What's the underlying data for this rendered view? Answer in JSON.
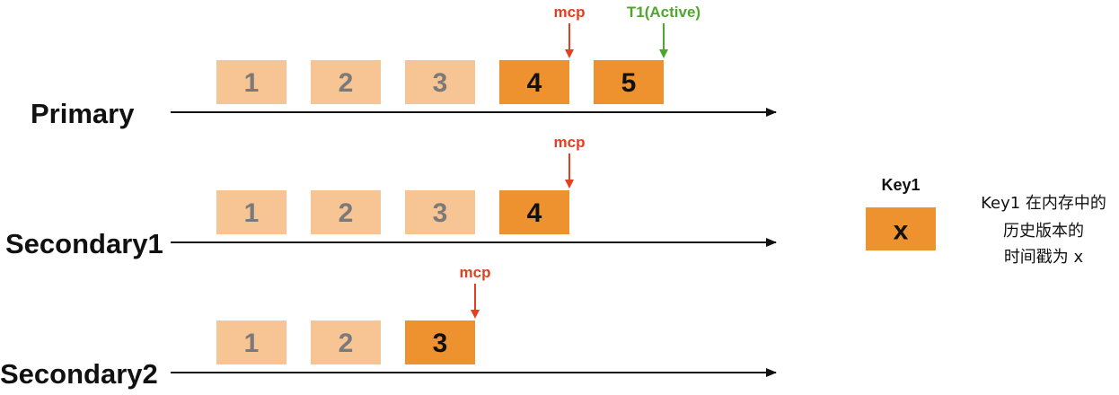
{
  "colors": {
    "old_box": "#f6c593",
    "old_text": "#7a7a7a",
    "current_box": "#ee922f",
    "current_text": "#111111",
    "mcp": "#e2401f",
    "active": "#4fa62e",
    "axis": "#111111"
  },
  "rows": [
    {
      "id": "primary",
      "label": "Primary",
      "boxes": [
        {
          "label": "1",
          "state": "old"
        },
        {
          "label": "2",
          "state": "old"
        },
        {
          "label": "3",
          "state": "old"
        },
        {
          "label": "4",
          "state": "current"
        },
        {
          "label": "5",
          "state": "current"
        }
      ],
      "markers": [
        {
          "label": "mcp",
          "kind": "mcp",
          "after_box": 4
        },
        {
          "label": "T1(Active)",
          "kind": "active",
          "after_box": 5
        }
      ]
    },
    {
      "id": "secondary1",
      "label": "Secondary1",
      "boxes": [
        {
          "label": "1",
          "state": "old"
        },
        {
          "label": "2",
          "state": "old"
        },
        {
          "label": "3",
          "state": "old"
        },
        {
          "label": "4",
          "state": "current"
        }
      ],
      "markers": [
        {
          "label": "mcp",
          "kind": "mcp",
          "after_box": 4
        }
      ]
    },
    {
      "id": "secondary2",
      "label": "Secondary2",
      "boxes": [
        {
          "label": "1",
          "state": "old"
        },
        {
          "label": "2",
          "state": "old"
        },
        {
          "label": "3",
          "state": "current"
        }
      ],
      "markers": [
        {
          "label": "mcp",
          "kind": "mcp",
          "after_box": 3
        }
      ]
    }
  ],
  "legend": {
    "title": "Key1",
    "box_label": "x",
    "description_lines": [
      "Key1 在内存中的",
      "历史版本的",
      "时间戳为 x"
    ]
  }
}
